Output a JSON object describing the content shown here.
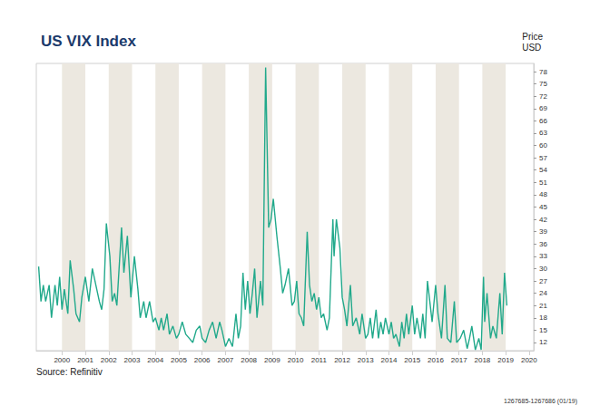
{
  "chart_data": {
    "type": "line",
    "title": "US VIX Index",
    "y_label": "Price\nUSD",
    "source": "Source: Refinitiv",
    "note": "1267685-1267686 (01/19)",
    "color": "#21a98b",
    "grid": false,
    "xlim": [
      1998.9,
      2020.2
    ],
    "xticks": [
      2000,
      2001,
      2002,
      2003,
      2004,
      2005,
      2006,
      2007,
      2008,
      2009,
      2010,
      2011,
      2012,
      2013,
      2014,
      2015,
      2016,
      2017,
      2018,
      2019,
      2020
    ],
    "ylim": [
      10,
      80
    ],
    "yticks": [
      12,
      15,
      18,
      21,
      24,
      27,
      30,
      33,
      36,
      39,
      42,
      45,
      48,
      51,
      54,
      57,
      60,
      63,
      66,
      69,
      72,
      75,
      78
    ],
    "x": [
      1999.0,
      1999.1,
      1999.2,
      1999.3,
      1999.45,
      1999.55,
      1999.7,
      1999.8,
      1999.9,
      2000.0,
      2000.1,
      2000.25,
      2000.35,
      2000.5,
      2000.6,
      2000.75,
      2000.85,
      2001.0,
      2001.15,
      2001.3,
      2001.45,
      2001.6,
      2001.7,
      2001.8,
      2001.9,
      2002.05,
      2002.15,
      2002.25,
      2002.35,
      2002.55,
      2002.65,
      2002.8,
      2002.95,
      2003.1,
      2003.25,
      2003.35,
      2003.5,
      2003.6,
      2003.75,
      2003.9,
      2004.0,
      2004.15,
      2004.25,
      2004.35,
      2004.5,
      2004.6,
      2004.75,
      2004.9,
      2005.0,
      2005.15,
      2005.3,
      2005.45,
      2005.6,
      2005.75,
      2005.9,
      2006.0,
      2006.15,
      2006.3,
      2006.45,
      2006.6,
      2006.75,
      2006.85,
      2007.0,
      2007.15,
      2007.3,
      2007.45,
      2007.55,
      2007.65,
      2007.75,
      2007.85,
      2007.95,
      2008.05,
      2008.15,
      2008.25,
      2008.35,
      2008.5,
      2008.6,
      2008.72,
      2008.85,
      2008.95,
      2009.05,
      2009.2,
      2009.35,
      2009.45,
      2009.55,
      2009.7,
      2009.85,
      2009.95,
      2010.05,
      2010.15,
      2010.25,
      2010.35,
      2010.5,
      2010.6,
      2010.7,
      2010.8,
      2010.9,
      2011.0,
      2011.1,
      2011.2,
      2011.35,
      2011.45,
      2011.6,
      2011.65,
      2011.75,
      2011.9,
      2012.0,
      2012.1,
      2012.2,
      2012.35,
      2012.45,
      2012.6,
      2012.75,
      2012.85,
      2013.0,
      2013.1,
      2013.2,
      2013.3,
      2013.45,
      2013.55,
      2013.65,
      2013.75,
      2013.85,
      2014.0,
      2014.1,
      2014.2,
      2014.3,
      2014.45,
      2014.55,
      2014.65,
      2014.75,
      2014.85,
      2015.0,
      2015.1,
      2015.2,
      2015.35,
      2015.45,
      2015.55,
      2015.65,
      2015.75,
      2015.85,
      2016.0,
      2016.1,
      2016.25,
      2016.4,
      2016.5,
      2016.65,
      2016.8,
      2016.9,
      2017.05,
      2017.2,
      2017.35,
      2017.45,
      2017.55,
      2017.7,
      2017.85,
      2017.95,
      2018.05,
      2018.1,
      2018.2,
      2018.35,
      2018.45,
      2018.6,
      2018.75,
      2018.85,
      2018.95,
      2019.05
    ],
    "values": [
      30.5,
      22,
      26,
      22,
      26,
      18,
      26,
      21,
      28,
      20,
      25,
      19,
      32,
      25,
      19,
      17,
      23,
      28,
      22,
      30,
      26,
      22,
      20,
      25,
      41,
      33,
      22,
      24,
      21,
      40,
      29,
      38,
      23,
      33,
      25,
      18,
      22,
      18,
      22,
      17,
      18,
      15,
      18,
      15,
      19,
      14,
      16,
      13,
      14,
      17,
      14,
      13,
      12,
      15,
      16,
      13,
      12,
      15,
      17,
      13,
      17,
      15,
      11,
      13,
      11,
      19,
      13,
      16,
      29,
      20,
      27,
      19,
      24,
      30,
      18,
      27,
      21,
      79,
      40,
      42,
      47,
      38,
      30,
      24,
      26,
      30,
      21,
      22,
      27,
      19,
      18,
      16,
      39,
      26,
      22,
      24,
      20,
      23,
      18,
      19,
      15,
      18,
      42,
      33,
      42,
      35,
      23,
      20,
      16,
      26,
      16,
      18,
      14,
      19,
      13,
      14,
      18,
      13,
      20,
      13,
      17,
      14,
      18,
      14,
      17,
      13,
      14,
      11,
      17,
      13,
      19,
      14,
      21,
      14,
      18,
      13,
      19,
      13,
      27,
      22,
      17,
      26,
      19,
      13,
      26,
      13,
      12,
      22,
      12,
      13,
      15,
      10.5,
      13,
      16,
      10.2,
      13,
      10.2,
      28,
      17,
      24,
      13,
      16,
      13,
      24,
      14,
      29,
      21
    ]
  }
}
